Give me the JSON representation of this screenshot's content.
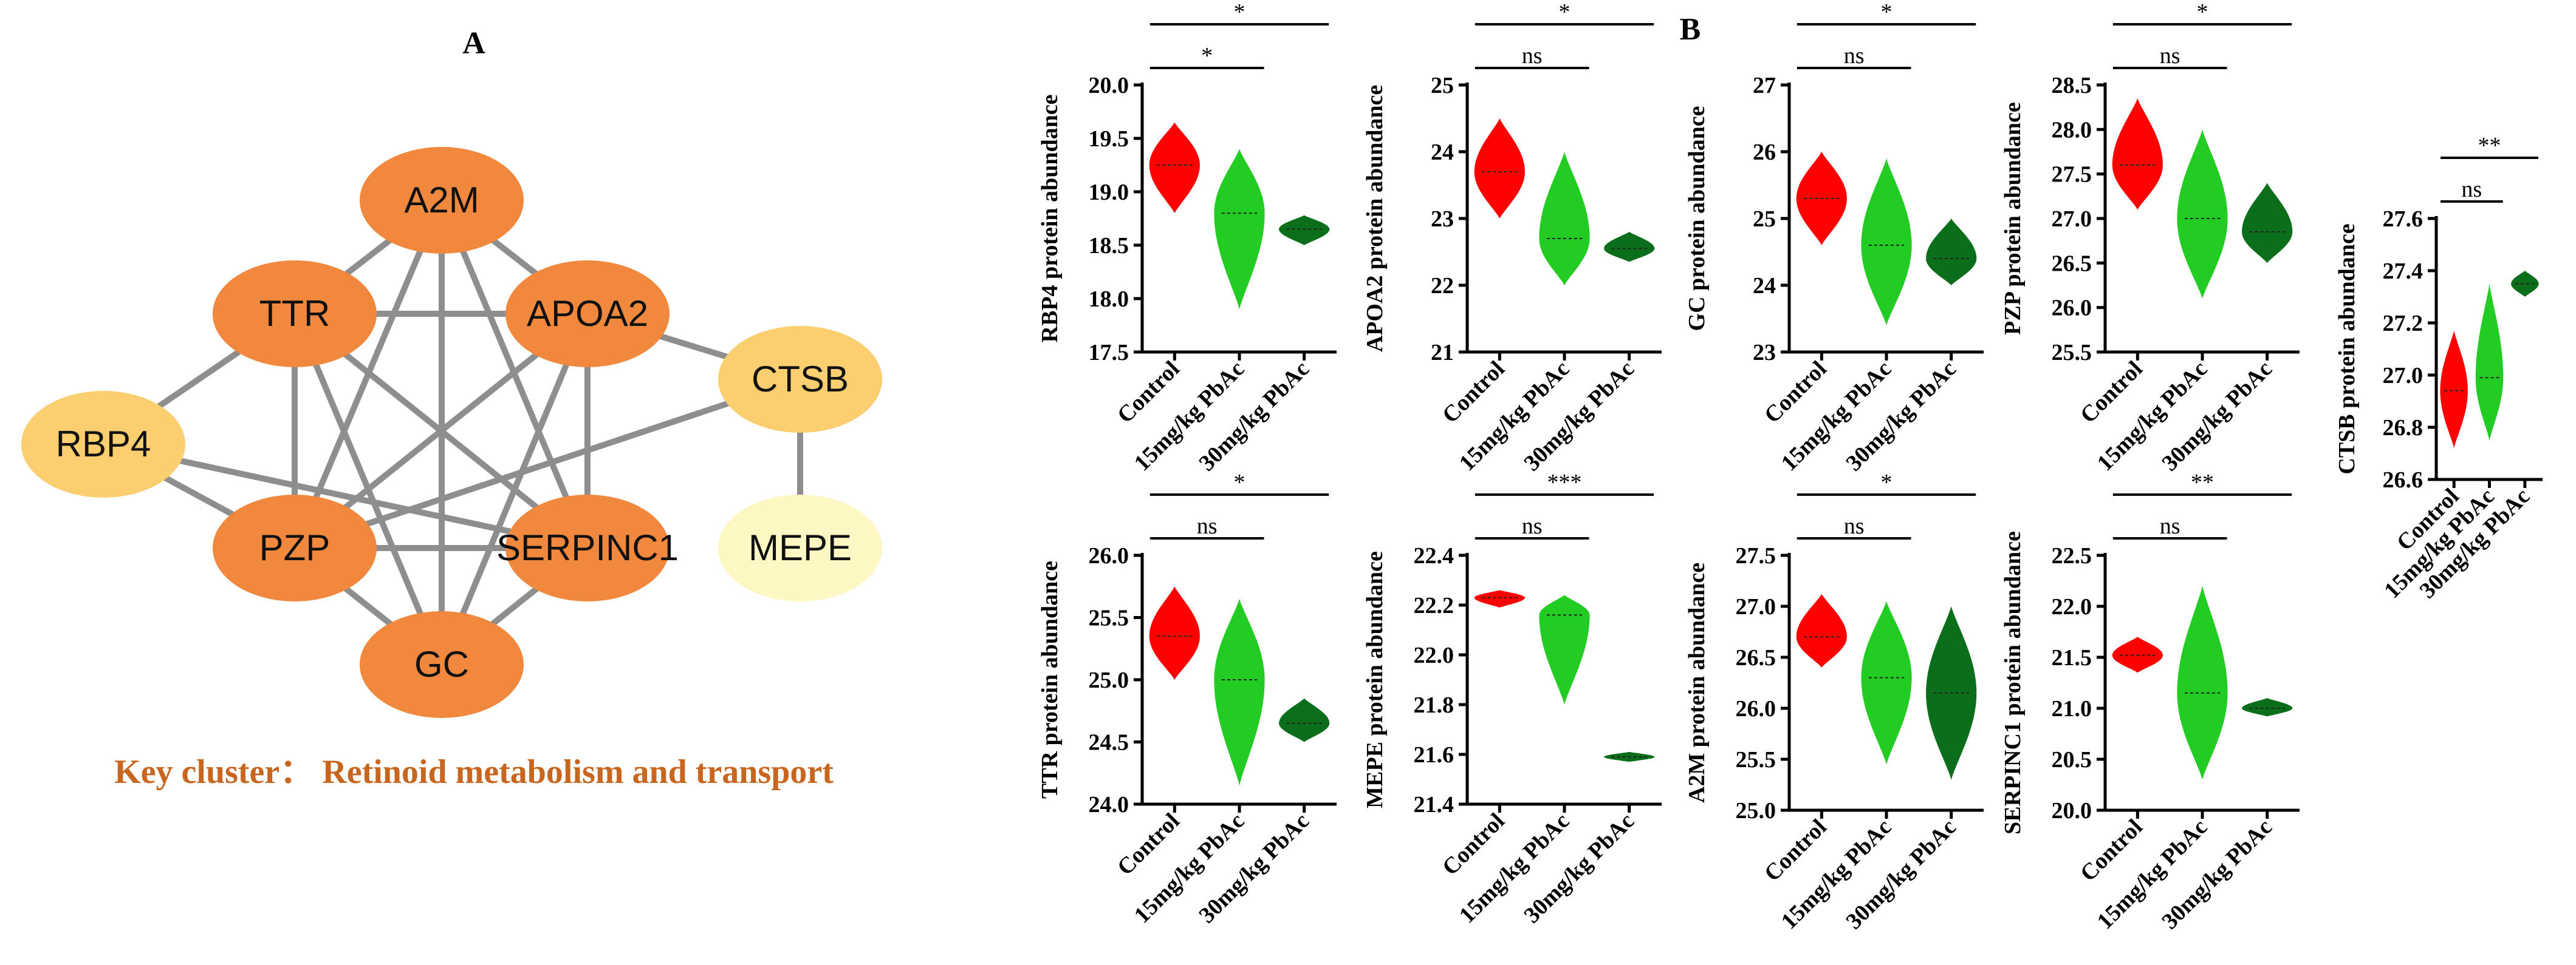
{
  "panel_a": {
    "label": "A",
    "caption": "Key cluster： Retinoid metabolism and transport",
    "nodes": [
      {
        "id": "A2M",
        "label": "A2M",
        "color": "#f0883e"
      },
      {
        "id": "TTR",
        "label": "TTR",
        "color": "#f0883e"
      },
      {
        "id": "APOA2",
        "label": "APOA2",
        "color": "#f0883e"
      },
      {
        "id": "CTSB",
        "label": "CTSB",
        "color": "#fbce6f"
      },
      {
        "id": "RBP4",
        "label": "RBP4",
        "color": "#fbce6f"
      },
      {
        "id": "PZP",
        "label": "PZP",
        "color": "#f0883e"
      },
      {
        "id": "SERPINC1",
        "label": "SERPINC1",
        "color": "#f0883e"
      },
      {
        "id": "MEPE",
        "label": "MEPE",
        "color": "#fdf7c3"
      },
      {
        "id": "GC",
        "label": "GC",
        "color": "#f0883e"
      }
    ],
    "edges": [
      [
        "A2M",
        "TTR"
      ],
      [
        "A2M",
        "APOA2"
      ],
      [
        "A2M",
        "PZP"
      ],
      [
        "A2M",
        "SERPINC1"
      ],
      [
        "A2M",
        "GC"
      ],
      [
        "TTR",
        "APOA2"
      ],
      [
        "TTR",
        "RBP4"
      ],
      [
        "TTR",
        "PZP"
      ],
      [
        "TTR",
        "SERPINC1"
      ],
      [
        "TTR",
        "GC"
      ],
      [
        "APOA2",
        "PZP"
      ],
      [
        "APOA2",
        "SERPINC1"
      ],
      [
        "APOA2",
        "GC"
      ],
      [
        "APOA2",
        "CTSB"
      ],
      [
        "RBP4",
        "SERPINC1"
      ],
      [
        "RBP4",
        "PZP"
      ],
      [
        "PZP",
        "SERPINC1"
      ],
      [
        "PZP",
        "GC"
      ],
      [
        "PZP",
        "CTSB"
      ],
      [
        "SERPINC1",
        "GC"
      ],
      [
        "CTSB",
        "MEPE"
      ]
    ]
  },
  "panel_b": {
    "label": "B",
    "categories": [
      "Control",
      "15mg/kg PbAc",
      "30mg/kg PbAc"
    ],
    "colors": [
      "#ff0000",
      "#22cc22",
      "#0b6e1a"
    ]
  },
  "chart_data": [
    {
      "type": "violin",
      "id": "rbp4",
      "ylabel": "RBP4 protein abundance",
      "categories": [
        "Control",
        "15mg/kg PbAc",
        "30mg/kg PbAc"
      ],
      "ylim": [
        17.5,
        20.0
      ],
      "ticks": [
        "17.5",
        "18.0",
        "18.5",
        "19.0",
        "19.5",
        "20.0"
      ],
      "groups": [
        {
          "min": 18.8,
          "max": 19.65,
          "median": 19.25
        },
        {
          "min": 17.9,
          "max": 19.4,
          "median": 18.8
        },
        {
          "min": 18.5,
          "max": 18.78,
          "median": 18.65
        }
      ],
      "significance": [
        {
          "from": 0,
          "to": 1,
          "label": "*"
        },
        {
          "from": 0,
          "to": 2,
          "label": "*"
        }
      ]
    },
    {
      "type": "violin",
      "id": "apoa2",
      "ylabel": "APOA2 protein abundance",
      "categories": [
        "Control",
        "15mg/kg PbAc",
        "30mg/kg PbAc"
      ],
      "ylim": [
        21,
        25
      ],
      "ticks": [
        "21",
        "22",
        "23",
        "24",
        "25"
      ],
      "groups": [
        {
          "min": 23.0,
          "max": 24.5,
          "median": 23.7
        },
        {
          "min": 22.0,
          "max": 24.0,
          "median": 22.7
        },
        {
          "min": 22.35,
          "max": 22.8,
          "median": 22.55
        }
      ],
      "significance": [
        {
          "from": 0,
          "to": 1,
          "label": "ns"
        },
        {
          "from": 0,
          "to": 2,
          "label": "*"
        }
      ]
    },
    {
      "type": "violin",
      "id": "gc",
      "ylabel": "GC protein abundance",
      "categories": [
        "Control",
        "15mg/kg PbAc",
        "30mg/kg PbAc"
      ],
      "ylim": [
        23,
        27
      ],
      "ticks": [
        "23",
        "24",
        "25",
        "26",
        "27"
      ],
      "groups": [
        {
          "min": 24.6,
          "max": 26.0,
          "median": 25.3
        },
        {
          "min": 23.4,
          "max": 25.9,
          "median": 24.6
        },
        {
          "min": 24.0,
          "max": 25.0,
          "median": 24.4
        }
      ],
      "significance": [
        {
          "from": 0,
          "to": 1,
          "label": "ns"
        },
        {
          "from": 0,
          "to": 2,
          "label": "*"
        }
      ]
    },
    {
      "type": "violin",
      "id": "pzp",
      "ylabel": "PZP protein abundance",
      "categories": [
        "Control",
        "15mg/kg PbAc",
        "30mg/kg PbAc"
      ],
      "ylim": [
        25.5,
        28.5
      ],
      "ticks": [
        "25.5",
        "26.0",
        "26.5",
        "27.0",
        "27.5",
        "28.0",
        "28.5"
      ],
      "groups": [
        {
          "min": 27.1,
          "max": 28.35,
          "median": 27.6
        },
        {
          "min": 26.1,
          "max": 28.0,
          "median": 27.0
        },
        {
          "min": 26.5,
          "max": 27.4,
          "median": 26.85
        }
      ],
      "significance": [
        {
          "from": 0,
          "to": 1,
          "label": "ns"
        },
        {
          "from": 0,
          "to": 2,
          "label": "*"
        }
      ]
    },
    {
      "type": "violin",
      "id": "ctsb",
      "ylabel": "CTSB protein abundance",
      "categories": [
        "Control",
        "15mg/kg PbAc",
        "30mg/kg PbAc"
      ],
      "ylim": [
        26.6,
        27.6
      ],
      "ticks": [
        "26.6",
        "26.8",
        "27.0",
        "27.2",
        "27.4",
        "27.6"
      ],
      "groups": [
        {
          "min": 26.72,
          "max": 27.17,
          "median": 26.94
        },
        {
          "min": 26.75,
          "max": 27.35,
          "median": 26.99
        },
        {
          "min": 27.3,
          "max": 27.4,
          "median": 27.35
        }
      ],
      "significance": [
        {
          "from": 0,
          "to": 1,
          "label": "ns"
        },
        {
          "from": 0,
          "to": 2,
          "label": "**"
        }
      ]
    },
    {
      "type": "violin",
      "id": "ttr",
      "ylabel": "TTR protein abundance",
      "categories": [
        "Control",
        "15mg/kg PbAc",
        "30mg/kg PbAc"
      ],
      "ylim": [
        24.0,
        26.0
      ],
      "ticks": [
        "24.0",
        "24.5",
        "25.0",
        "25.5",
        "26.0"
      ],
      "groups": [
        {
          "min": 25.0,
          "max": 25.75,
          "median": 25.35
        },
        {
          "min": 24.15,
          "max": 25.65,
          "median": 25.0
        },
        {
          "min": 24.5,
          "max": 24.85,
          "median": 24.65
        }
      ],
      "significance": [
        {
          "from": 0,
          "to": 1,
          "label": "ns"
        },
        {
          "from": 0,
          "to": 2,
          "label": "*"
        }
      ]
    },
    {
      "type": "violin",
      "id": "mepe",
      "ylabel": "MEPE protein abundance",
      "categories": [
        "Control",
        "15mg/kg PbAc",
        "30mg/kg PbAc"
      ],
      "ylim": [
        21.4,
        22.4
      ],
      "ticks": [
        "21.4",
        "21.6",
        "21.8",
        "22.0",
        "22.2",
        "22.4"
      ],
      "groups": [
        {
          "min": 22.19,
          "max": 22.26,
          "median": 22.23
        },
        {
          "min": 21.8,
          "max": 22.24,
          "median": 22.16
        },
        {
          "min": 21.57,
          "max": 21.61,
          "median": 21.59
        }
      ],
      "significance": [
        {
          "from": 0,
          "to": 1,
          "label": "ns"
        },
        {
          "from": 0,
          "to": 2,
          "label": "***"
        }
      ]
    },
    {
      "type": "violin",
      "id": "a2m",
      "ylabel": "A2M protein abundance",
      "categories": [
        "Control",
        "15mg/kg PbAc",
        "30mg/kg PbAc"
      ],
      "ylim": [
        25.0,
        27.5
      ],
      "ticks": [
        "25.0",
        "25.5",
        "26.0",
        "26.5",
        "27.0",
        "27.5"
      ],
      "groups": [
        {
          "min": 26.4,
          "max": 27.12,
          "median": 26.7
        },
        {
          "min": 25.45,
          "max": 27.05,
          "median": 26.3
        },
        {
          "min": 25.3,
          "max": 27.0,
          "median": 26.15
        }
      ],
      "significance": [
        {
          "from": 0,
          "to": 1,
          "label": "ns"
        },
        {
          "from": 0,
          "to": 2,
          "label": "*"
        }
      ]
    },
    {
      "type": "violin",
      "id": "serpinc1",
      "ylabel": "SERPINC1 protein abundance",
      "categories": [
        "Control",
        "15mg/kg PbAc",
        "30mg/kg PbAc"
      ],
      "ylim": [
        20.0,
        22.5
      ],
      "ticks": [
        "20.0",
        "20.5",
        "21.0",
        "21.5",
        "22.0",
        "22.5"
      ],
      "groups": [
        {
          "min": 21.35,
          "max": 21.7,
          "median": 21.52
        },
        {
          "min": 20.3,
          "max": 22.2,
          "median": 21.15
        },
        {
          "min": 20.92,
          "max": 21.1,
          "median": 21.0
        }
      ],
      "significance": [
        {
          "from": 0,
          "to": 1,
          "label": "ns"
        },
        {
          "from": 0,
          "to": 2,
          "label": "**"
        }
      ]
    }
  ]
}
